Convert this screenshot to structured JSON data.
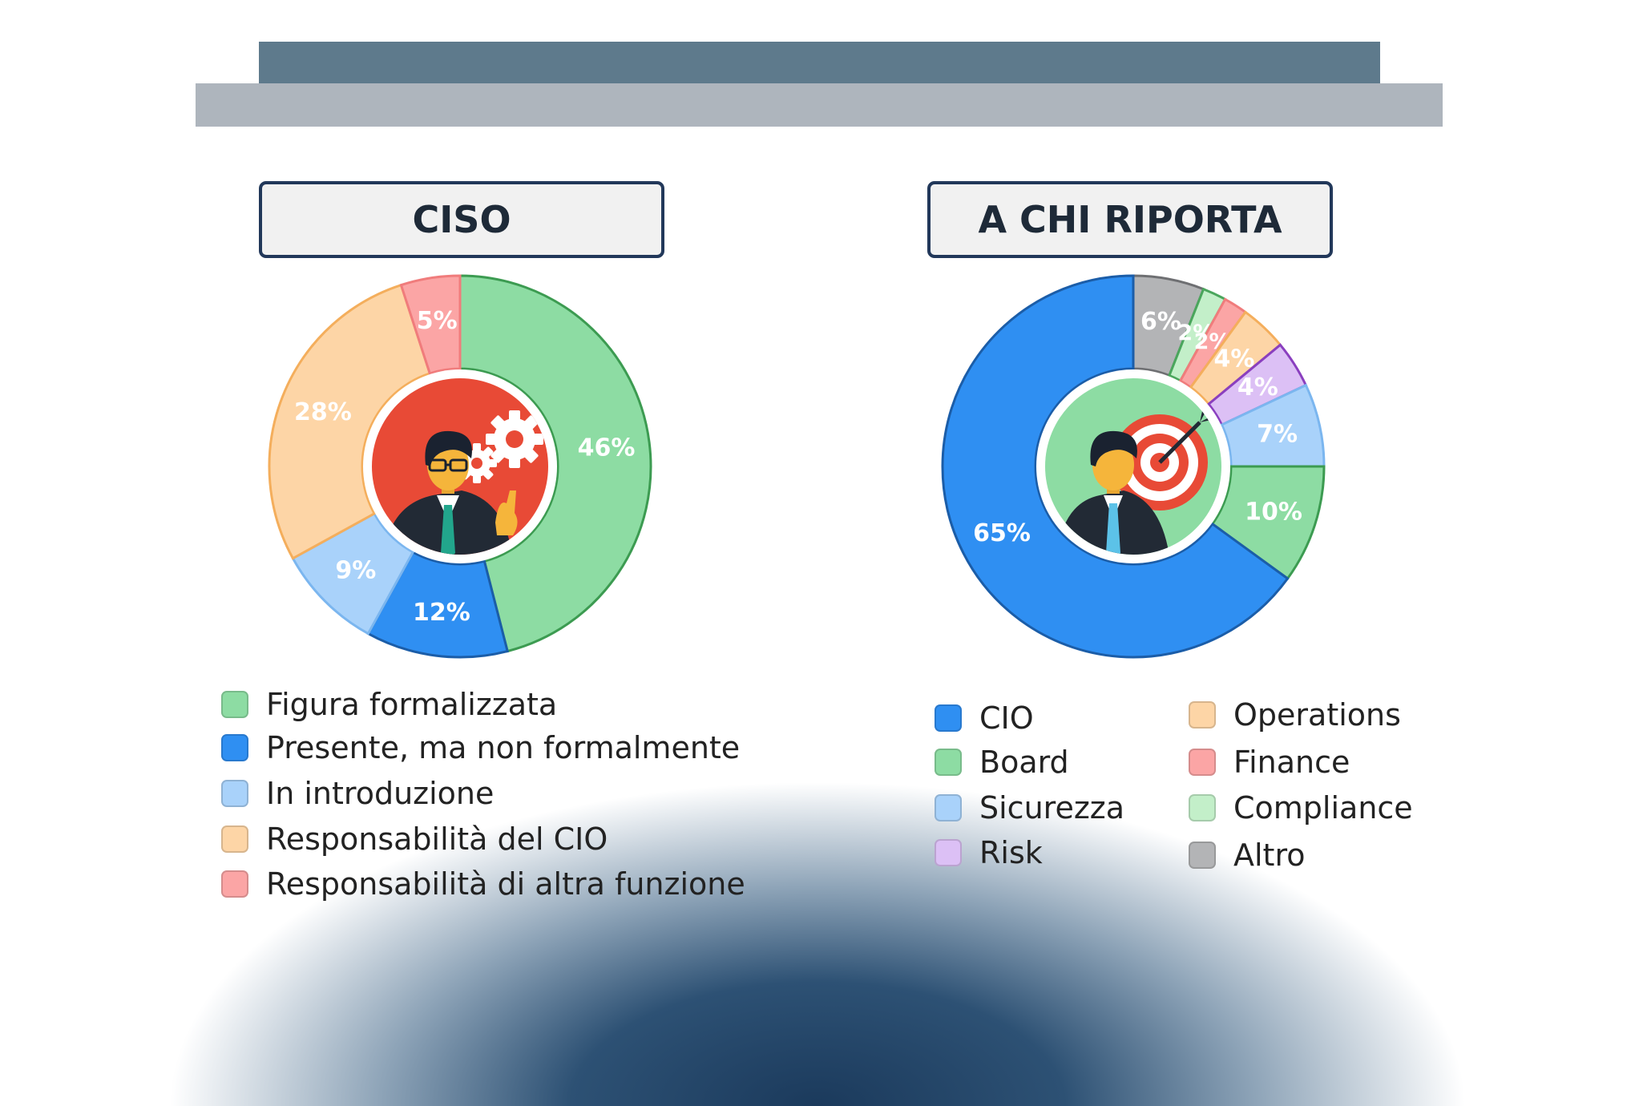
{
  "charts": {
    "ciso": {
      "title": "CISO",
      "legend": [
        "Figura formalizzata",
        "Presente, ma non formalmente",
        "In introduzione",
        "Responsabilità del CIO",
        "Responsabilità di altra funzione"
      ]
    },
    "report": {
      "title": "A CHI RIPORTA",
      "legend": [
        "CIO",
        "Board",
        "Sicurezza",
        "Risk",
        "Operations",
        "Finance",
        "Compliance",
        "Altro"
      ]
    }
  },
  "chart_data": [
    {
      "type": "pie",
      "title": "CISO",
      "categories": [
        "Figura formalizzata",
        "Presente, ma non formalmente",
        "In introduzione",
        "Responsabilità del CIO",
        "Responsabilità di altra funzione"
      ],
      "values": [
        46,
        12,
        9,
        28,
        5
      ],
      "labels": [
        "46%",
        "12%",
        "9%",
        "28%",
        "5%"
      ],
      "colors": [
        "#8ddca3",
        "#2f8ff2",
        "#a9d2fa",
        "#fdd5a6",
        "#fba5a5"
      ],
      "stroke_colors": [
        "#3c9b51",
        "#1b5da8",
        "#7bb6ef",
        "#f4ae5c",
        "#f07c7c"
      ],
      "legend_position": "bottom",
      "center_icon": "person-gears-icon"
    },
    {
      "type": "pie",
      "title": "A CHI RIPORTA",
      "categories": [
        "Altro",
        "Compliance",
        "Finance",
        "Operations",
        "Risk",
        "Sicurezza",
        "Board",
        "CIO"
      ],
      "values": [
        6,
        2,
        2,
        4,
        4,
        7,
        10,
        65
      ],
      "labels": [
        "6%",
        "2%",
        "2%",
        "4%",
        "4%",
        "7%",
        "10%",
        "65%"
      ],
      "colors": [
        "#b3b4b6",
        "#c3efc9",
        "#fba5a5",
        "#fdd5a6",
        "#dcc0f5",
        "#a9d2fa",
        "#8ddca3",
        "#2f8ff2"
      ],
      "stroke_colors": [
        "#6e6f72",
        "#4aa65c",
        "#f07c7c",
        "#f4ae5c",
        "#8a3fbf",
        "#7bb6ef",
        "#3c9b51",
        "#1b5da8"
      ],
      "legend_position": "bottom",
      "center_icon": "person-target-icon"
    }
  ]
}
